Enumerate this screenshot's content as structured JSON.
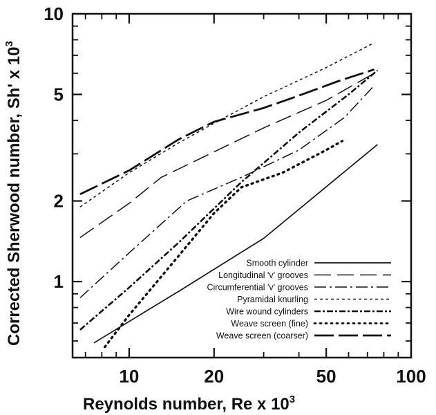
{
  "chart_data": {
    "type": "line",
    "xscale": "log",
    "yscale": "log",
    "xlim": [
      6.3,
      100
    ],
    "ylim": [
      0.52,
      10
    ],
    "xlabel": "Reynolds number, Re x 10",
    "xlabel_sup": "3",
    "ylabel": "Corrected Sherwood number, Sh' x 10",
    "ylabel_sup": "3",
    "x_ticks": [
      10,
      20,
      50,
      100
    ],
    "y_ticks": [
      1,
      2,
      5,
      10
    ],
    "grid": false,
    "legend_position": "bottom-right",
    "series": [
      {
        "name": "Smooth cylinder",
        "dash": "",
        "width": 1.7,
        "points": [
          [
            7.5,
            0.59
          ],
          [
            15,
            0.92
          ],
          [
            30,
            1.45
          ],
          [
            76,
            3.25
          ]
        ]
      },
      {
        "name": "Longitudinal 'v' grooves",
        "dash": "24,9",
        "width": 1.5,
        "points": [
          [
            6.7,
            1.46
          ],
          [
            10,
            1.96
          ],
          [
            13,
            2.45
          ],
          [
            20,
            3.05
          ],
          [
            30,
            3.75
          ],
          [
            50,
            4.75
          ],
          [
            74,
            6.0
          ]
        ]
      },
      {
        "name": "Circumferential 'v' grooves",
        "dash": "17,5,3,5",
        "width": 1.5,
        "points": [
          [
            6.7,
            0.87
          ],
          [
            10,
            1.28
          ],
          [
            16,
            2.0
          ],
          [
            25,
            2.45
          ],
          [
            40,
            3.1
          ],
          [
            58,
            4.1
          ],
          [
            74,
            5.4
          ]
        ]
      },
      {
        "name": "Pyramidal knurling",
        "dash": "4,4",
        "width": 1.5,
        "points": [
          [
            6.7,
            1.9
          ],
          [
            10,
            2.55
          ],
          [
            15,
            3.3
          ],
          [
            20,
            3.9
          ],
          [
            30,
            4.9
          ],
          [
            50,
            6.3
          ],
          [
            74,
            7.8
          ]
        ]
      },
      {
        "name": "Wire wound cylinders",
        "dash": "9,3,3,3",
        "width": 2.6,
        "points": [
          [
            6.7,
            0.66
          ],
          [
            10,
            0.95
          ],
          [
            15,
            1.4
          ],
          [
            25,
            2.35
          ],
          [
            40,
            3.6
          ],
          [
            60,
            5.0
          ],
          [
            76,
            6.15
          ]
        ]
      },
      {
        "name": "Weave screen (fine)",
        "dash": "2,6",
        "width": 3.4,
        "points": [
          [
            8.2,
            0.57
          ],
          [
            10,
            0.75
          ],
          [
            15,
            1.25
          ],
          [
            20,
            1.8
          ],
          [
            25,
            2.25
          ],
          [
            35,
            2.55
          ],
          [
            50,
            3.1
          ],
          [
            57,
            3.35
          ]
        ]
      },
      {
        "name": "Weave screen (coarser)",
        "dash": "28,7",
        "width": 2.8,
        "points": [
          [
            6.7,
            2.12
          ],
          [
            10,
            2.6
          ],
          [
            15,
            3.4
          ],
          [
            20,
            3.95
          ],
          [
            30,
            4.45
          ],
          [
            40,
            4.95
          ],
          [
            55,
            5.6
          ],
          [
            74,
            6.2
          ]
        ]
      }
    ]
  }
}
